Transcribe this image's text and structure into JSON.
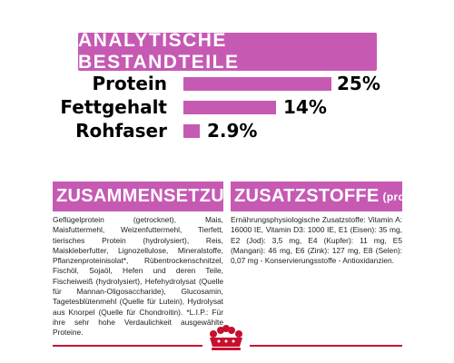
{
  "banner": {
    "title": "ANALYTISCHE BESTANDTEILE"
  },
  "analysis": [
    {
      "label": "Protein",
      "value": "25%",
      "fraction": 0.25
    },
    {
      "label": "Fettgehalt",
      "value": "14%",
      "fraction": 0.14
    },
    {
      "label": "Rohfaser",
      "value": "2.9%",
      "fraction": 0.029
    }
  ],
  "composition": {
    "title": "ZUSAMMENSETZUNG",
    "text": "Geflügelprotein (getrocknet), Mais, Maisfuttermehl, Weizenfuttermehl, Tierfett, tierisches Protein (hydrolysiert), Reis, Maiskleberfutter, Lignozellulose, Mineralstoffe, Pflanzenproteinisolat*, Rübentrockenschnitzel, Fischöl, Sojaöl, Hefen und deren Teile, Fischeiweiß (hydrolysiert), Hefehydrolysat (Quelle für Mannan-Oligosaccharide), Glucosamin, Tagetesblütenmehl (Quelle für Lutein), Hydrolysat aus Knorpel (Quelle für Chondroitin). *L.I.P.: Für ihre sehr hohe Verdaulichkeit ausgewählte Proteine."
  },
  "additives": {
    "title": "ZUSATZSTOFFE",
    "title_suffix": "(pro kg)",
    "text": "Ernährungsphysiologische Zusatzstoffe: Vitamin A: 16000 IE, Vitamin D3: 1000 IE, E1 (Eisen): 35 mg, E2 (Jod): 3,5 mg, E4 (Kupfer): 11 mg, E5 (Mangan): 46 mg, E6 (Zink): 127 mg, E8 (Selen): 0,07 mg - Konservierungsstoffe - Antioxidanzien."
  },
  "colors": {
    "accent": "#c65ab3",
    "brand_red": "#c8102e"
  },
  "logo": {
    "icon": "royal-canin-crown-icon"
  }
}
